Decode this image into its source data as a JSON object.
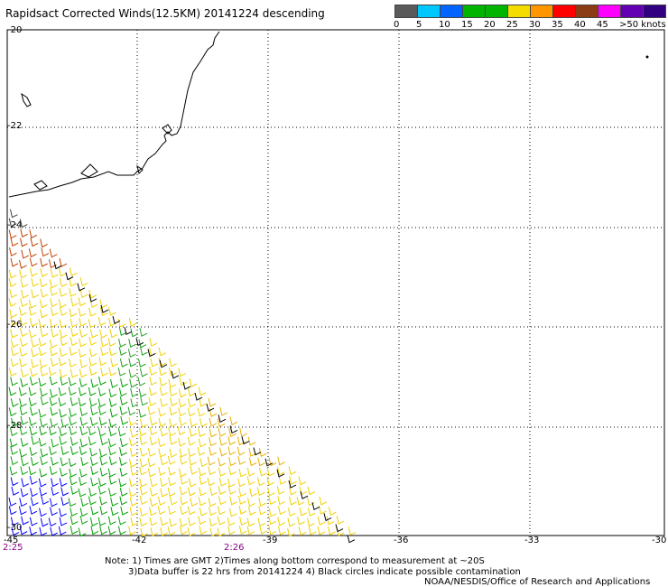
{
  "title": "Rapidsact Corrected Winds(12.5KM) 20141224 descending",
  "legend": {
    "labels": [
      "0",
      "5",
      "10",
      "15",
      "20",
      "25",
      "30",
      "35",
      "40",
      "45",
      ">50 knots"
    ],
    "colors": [
      "#5a5a5a",
      "#00c8ff",
      "#0064ff",
      "#00b400",
      "#00b400",
      "#f5dc00",
      "#ff9600",
      "#ff0000",
      "#8c3c14",
      "#ff00ff",
      "#6400b4",
      "#320080"
    ]
  },
  "lat_labels": [
    "-20",
    "-22",
    "-24",
    "-26",
    "-28",
    "-30"
  ],
  "lon_labels": [
    "-45",
    "-42",
    "-39",
    "-36",
    "-33",
    "-30"
  ],
  "times": {
    "left": "2:25",
    "mid": "2:26"
  },
  "notes": {
    "line1": "Note: 1) Times are GMT 2)Times along bottom correspond to measurement at ~20S",
    "line2": "3)Data buffer is 22 hrs from 20141224 4) Black circles indicate possible contamination",
    "line3": "NOAA/NESDIS/Office of Research and Applications"
  }
}
